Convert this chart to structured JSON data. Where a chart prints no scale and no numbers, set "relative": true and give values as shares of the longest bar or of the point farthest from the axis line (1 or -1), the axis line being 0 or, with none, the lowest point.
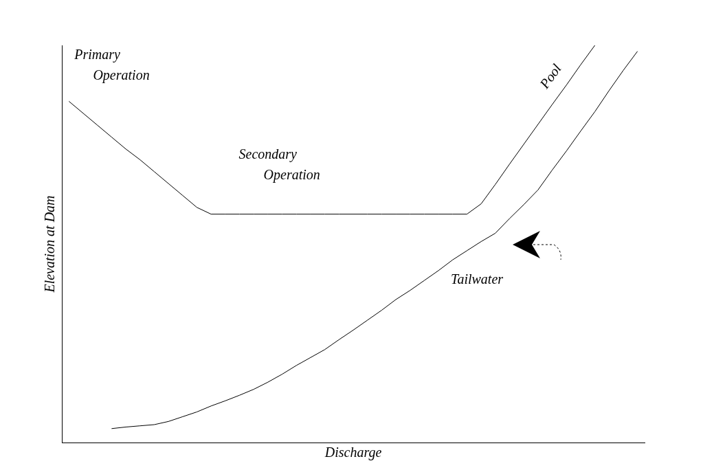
{
  "chart_data": {
    "type": "line",
    "relative": true,
    "xlabel": "Discharge",
    "ylabel": "Elevation at Dam",
    "grid": false,
    "legend": false,
    "marker": "none",
    "line_style": "solid",
    "categories": [
      null,
      null,
      null,
      null,
      null,
      null,
      null,
      null,
      null,
      null,
      null,
      null,
      null,
      null,
      null,
      null,
      null,
      null,
      null,
      null,
      null,
      null,
      null,
      null,
      null,
      null,
      null,
      null,
      null,
      null,
      null,
      null,
      null,
      null,
      null,
      null,
      null,
      null,
      null,
      null,
      null
    ],
    "annotations": [
      "Primary Operation",
      "Secondary Operation"
    ],
    "series": [
      {
        "name": "Pool",
        "color": "#000000",
        "values": [
          0.859,
          0.829,
          0.799,
          0.769,
          0.739,
          0.712,
          0.682,
          0.652,
          0.622,
          0.592,
          0.575,
          0.575,
          0.575,
          0.575,
          0.575,
          0.575,
          0.575,
          0.575,
          0.575,
          0.575,
          0.575,
          0.575,
          0.575,
          0.575,
          0.575,
          0.575,
          0.575,
          0.575,
          0.575,
          0.601,
          0.65,
          0.701,
          0.751,
          0.801,
          0.851,
          0.9,
          0.951,
          1,
          null,
          null,
          null
        ]
      },
      {
        "name": "Tailwater",
        "color": "#000000",
        "values": [
          null,
          null,
          null,
          0.035,
          0.039,
          0.042,
          0.045,
          0.053,
          0.065,
          0.077,
          0.092,
          0.105,
          0.119,
          0.134,
          0.152,
          0.172,
          0.194,
          0.214,
          0.234,
          0.259,
          0.283,
          0.308,
          0.333,
          0.36,
          0.383,
          0.408,
          0.433,
          0.46,
          0.483,
          0.506,
          0.527,
          0.564,
          0.599,
          0.636,
          0.686,
          0.734,
          0.784,
          0.833,
          0.886,
          0.937,
          0.985
        ]
      }
    ]
  }
}
